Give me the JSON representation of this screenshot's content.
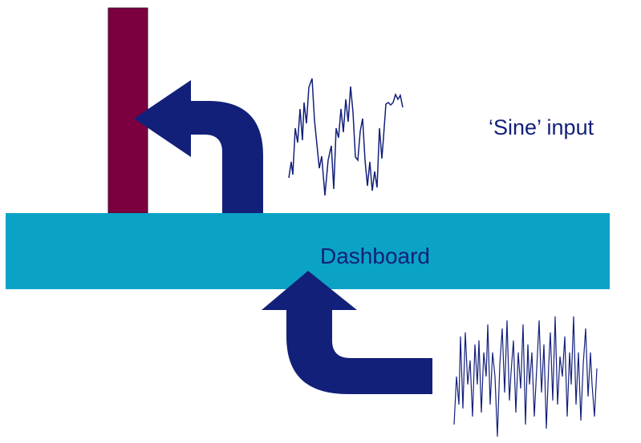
{
  "labels": {
    "dashboard": "Dashboard",
    "sine_input": "‘Sine’ input"
  },
  "colors": {
    "bar": "#0aa3c6",
    "bar_text": "#13207a",
    "post": "#7c003f",
    "arrow": "#13207a",
    "waves": "#13207a",
    "label_text": "#13207a",
    "background": "#ffffff"
  },
  "icons": {
    "upper_signal": "irregular-waveform",
    "lower_signal": "noisy-waveform",
    "upper_arrow": "curved-arrow-up-left",
    "lower_arrow": "curved-arrow-left-up"
  }
}
